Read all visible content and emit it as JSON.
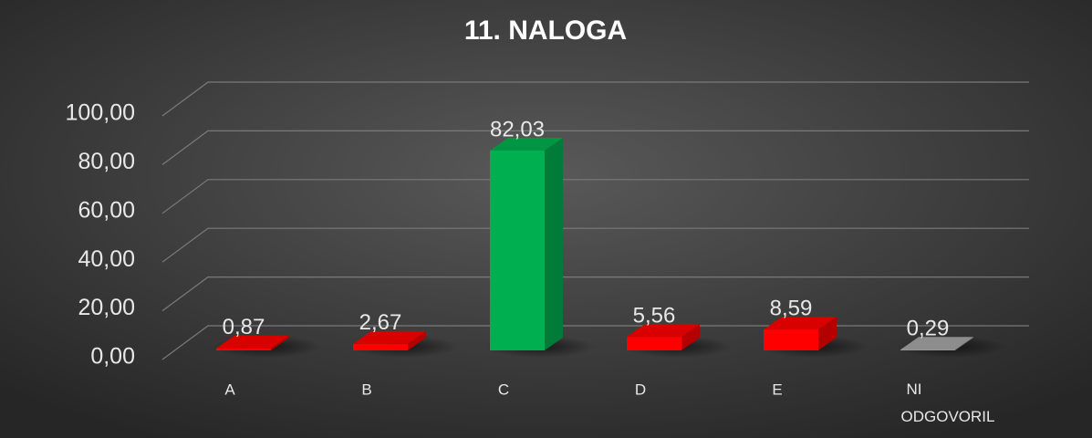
{
  "chart_data": {
    "type": "bar3d",
    "title": "11. NALOGA",
    "categories": [
      "A",
      "B",
      "C",
      "D",
      "E",
      "NI ODGOVORIL"
    ],
    "values": [
      0.87,
      2.67,
      82.03,
      5.56,
      8.59,
      0.29
    ],
    "value_labels": [
      "0,87",
      "2,67",
      "82,03",
      "5,56",
      "8,59",
      "0,29"
    ],
    "colors": [
      "#ff0000",
      "#ff0000",
      "#00b050",
      "#ff0000",
      "#ff0000",
      "#a6a6a6"
    ],
    "ylim": [
      0,
      100
    ],
    "yticks": [
      {
        "value": 0,
        "label": "0,00"
      },
      {
        "value": 20,
        "label": "20,00"
      },
      {
        "value": 40,
        "label": "40,00"
      },
      {
        "value": 60,
        "label": "60,00"
      },
      {
        "value": 80,
        "label": "80,00"
      },
      {
        "value": 100,
        "label": "100,00"
      }
    ],
    "grid": true
  }
}
